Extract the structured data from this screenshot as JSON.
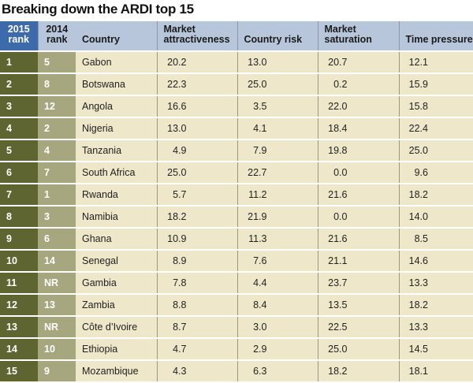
{
  "title": "Breaking down the ARDI top 15",
  "headers": {
    "rank2015": "2015 rank",
    "rank2014": "2014 rank",
    "country": "Country",
    "attractiveness": "Market attractiveness",
    "risk": "Country risk",
    "saturation": "Market saturation",
    "time": "Time pressure"
  },
  "colors": {
    "header": "#b7c6db",
    "rank2015_header": "#3d6aab",
    "rank2015": "#5e6530",
    "rank2014": "#a6a77f",
    "row": "#efe7c9"
  },
  "rows": [
    [
      "1",
      "5",
      "Gabon",
      "20.2",
      "13.0",
      "20.7",
      "12.1"
    ],
    [
      "2",
      "8",
      "Botswana",
      "22.3",
      "25.0",
      "0.2",
      "15.9"
    ],
    [
      "3",
      "12",
      "Angola",
      "16.6",
      "3.5",
      "22.0",
      "15.8"
    ],
    [
      "4",
      "2",
      "Nigeria",
      "13.0",
      "4.1",
      "18.4",
      "22.4"
    ],
    [
      "5",
      "4",
      "Tanzania",
      "4.9",
      "7.9",
      "19.8",
      "25.0"
    ],
    [
      "6",
      "7",
      "South Africa",
      "25.0",
      "22.7",
      "0.0",
      "9.6"
    ],
    [
      "7",
      "1",
      "Rwanda",
      "5.7",
      "11.2",
      "21.6",
      "18.2"
    ],
    [
      "8",
      "3",
      "Namibia",
      "18.2",
      "21.9",
      "0.0",
      "14.0"
    ],
    [
      "9",
      "6",
      "Ghana",
      "10.9",
      "11.3",
      "21.6",
      "8.5"
    ],
    [
      "10",
      "14",
      "Senegal",
      "8.9",
      "7.6",
      "21.1",
      "14.6"
    ],
    [
      "11",
      "NR",
      "Gambia",
      "7.8",
      "4.4",
      "23.7",
      "13.3"
    ],
    [
      "12",
      "13",
      "Zambia",
      "8.8",
      "8.4",
      "13.5",
      "18.2"
    ],
    [
      "13",
      "NR",
      "Côte d’Ivoire",
      "8.7",
      "3.0",
      "22.5",
      "13.3"
    ],
    [
      "14",
      "10",
      "Ethiopia",
      "4.7",
      "2.9",
      "25.0",
      "14.5"
    ],
    [
      "15",
      "9",
      "Mozambique",
      "4.3",
      "6.3",
      "18.2",
      "18.1"
    ]
  ]
}
